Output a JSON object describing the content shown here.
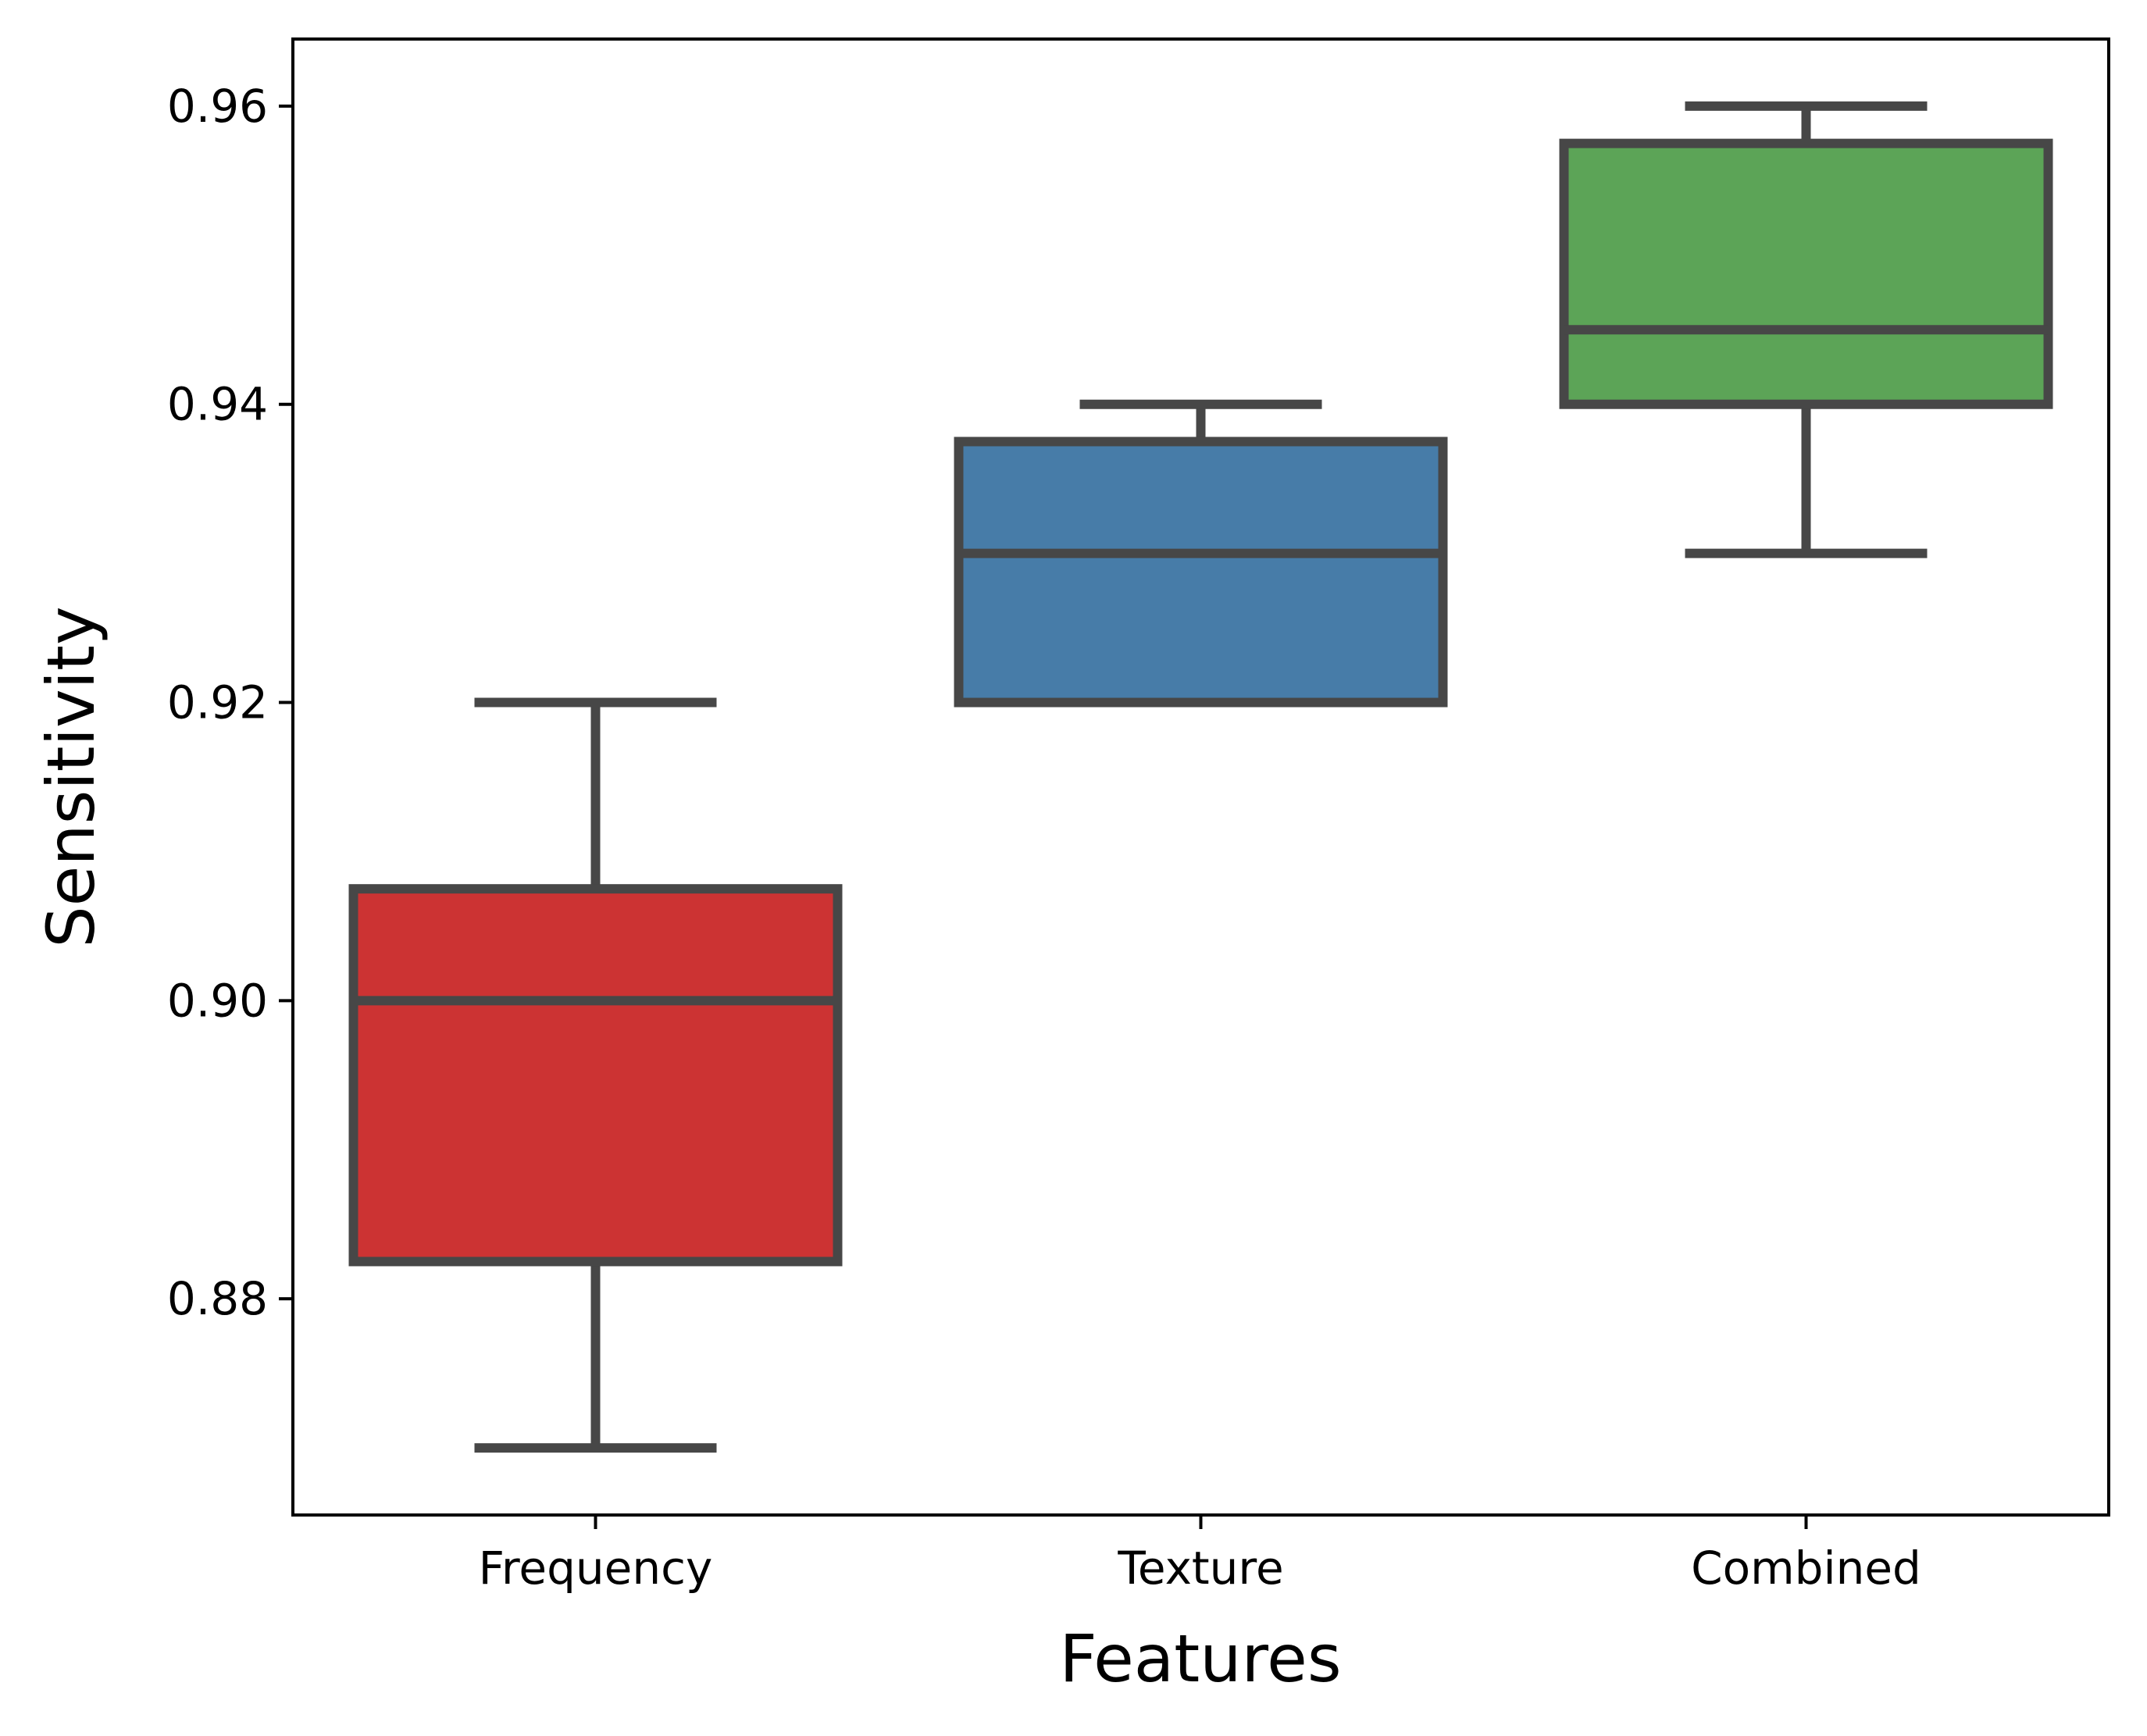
{
  "chart_data": {
    "type": "box",
    "title": "",
    "xlabel": "Features",
    "ylabel": "Sensitivity",
    "categories": [
      "Frequency",
      "Texture",
      "Combined"
    ],
    "ylim": [
      0.8655,
      0.9645
    ],
    "yticks": [
      0.88,
      0.9,
      0.92,
      0.94,
      0.96
    ],
    "ytick_labels": [
      "0.88",
      "0.90",
      "0.92",
      "0.94",
      "0.96"
    ],
    "grid": false,
    "legend": "none",
    "series": [
      {
        "category": "Frequency",
        "whisker_low": 0.87,
        "q1": 0.8825,
        "median": 0.9,
        "q3": 0.9075,
        "whisker_high": 0.92,
        "color": "#cc3333"
      },
      {
        "category": "Texture",
        "whisker_low": 0.92,
        "q1": 0.92,
        "median": 0.93,
        "q3": 0.9375,
        "whisker_high": 0.94,
        "color": "#477ca8"
      },
      {
        "category": "Combined",
        "whisker_low": 0.93,
        "q1": 0.94,
        "median": 0.945,
        "q3": 0.9575,
        "whisker_high": 0.96,
        "color": "#5ca457"
      }
    ],
    "line_color": "#474747"
  }
}
